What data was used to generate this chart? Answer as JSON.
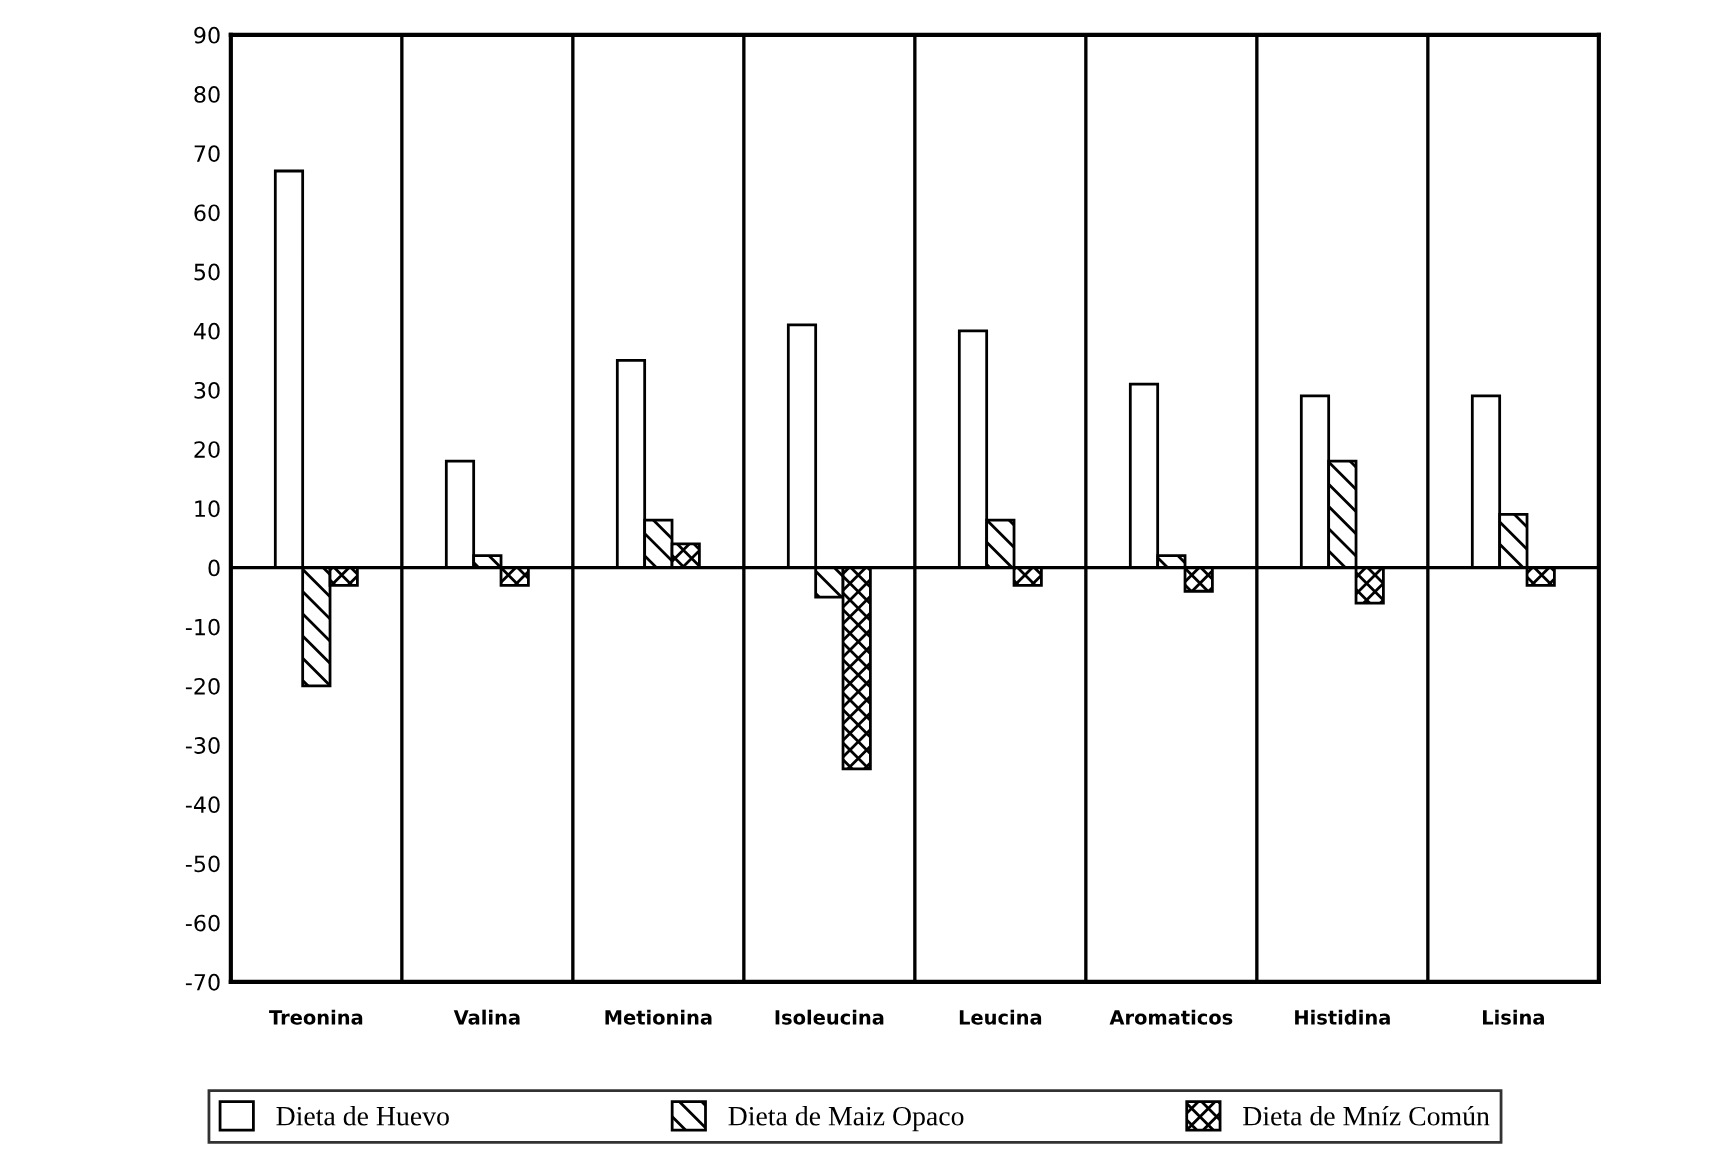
{
  "chart_data": {
    "type": "bar",
    "categories": [
      "Treonina",
      "Valina",
      "Metionina",
      "Isoleucina",
      "Leucina",
      "Aromaticos",
      "Histidina",
      "Lisina"
    ],
    "series": [
      {
        "name": "Dieta de Huevo",
        "color": "#ffffff",
        "values": [
          67,
          18,
          35,
          41,
          40,
          31,
          29,
          29
        ]
      },
      {
        "name": "Dieta de Maiz Opaco",
        "color": "#000000",
        "values": [
          -20,
          2,
          8,
          -5,
          8,
          2,
          18,
          9
        ]
      },
      {
        "name": "Dieta de Mníz Común",
        "color": "#000000",
        "values": [
          -3,
          -3,
          4,
          -34,
          -3,
          -4,
          -6,
          -3
        ]
      }
    ],
    "ylim": [
      -70,
      90
    ],
    "yticks": [
      90,
      80,
      70,
      60,
      50,
      40,
      30,
      20,
      10,
      0,
      -10,
      -20,
      -30,
      -40,
      -50,
      -60,
      -70
    ],
    "ref_lines": [
      {
        "axis": "y",
        "value": 0,
        "color": "#000000"
      }
    ],
    "grid": false,
    "legend": "bottom"
  }
}
